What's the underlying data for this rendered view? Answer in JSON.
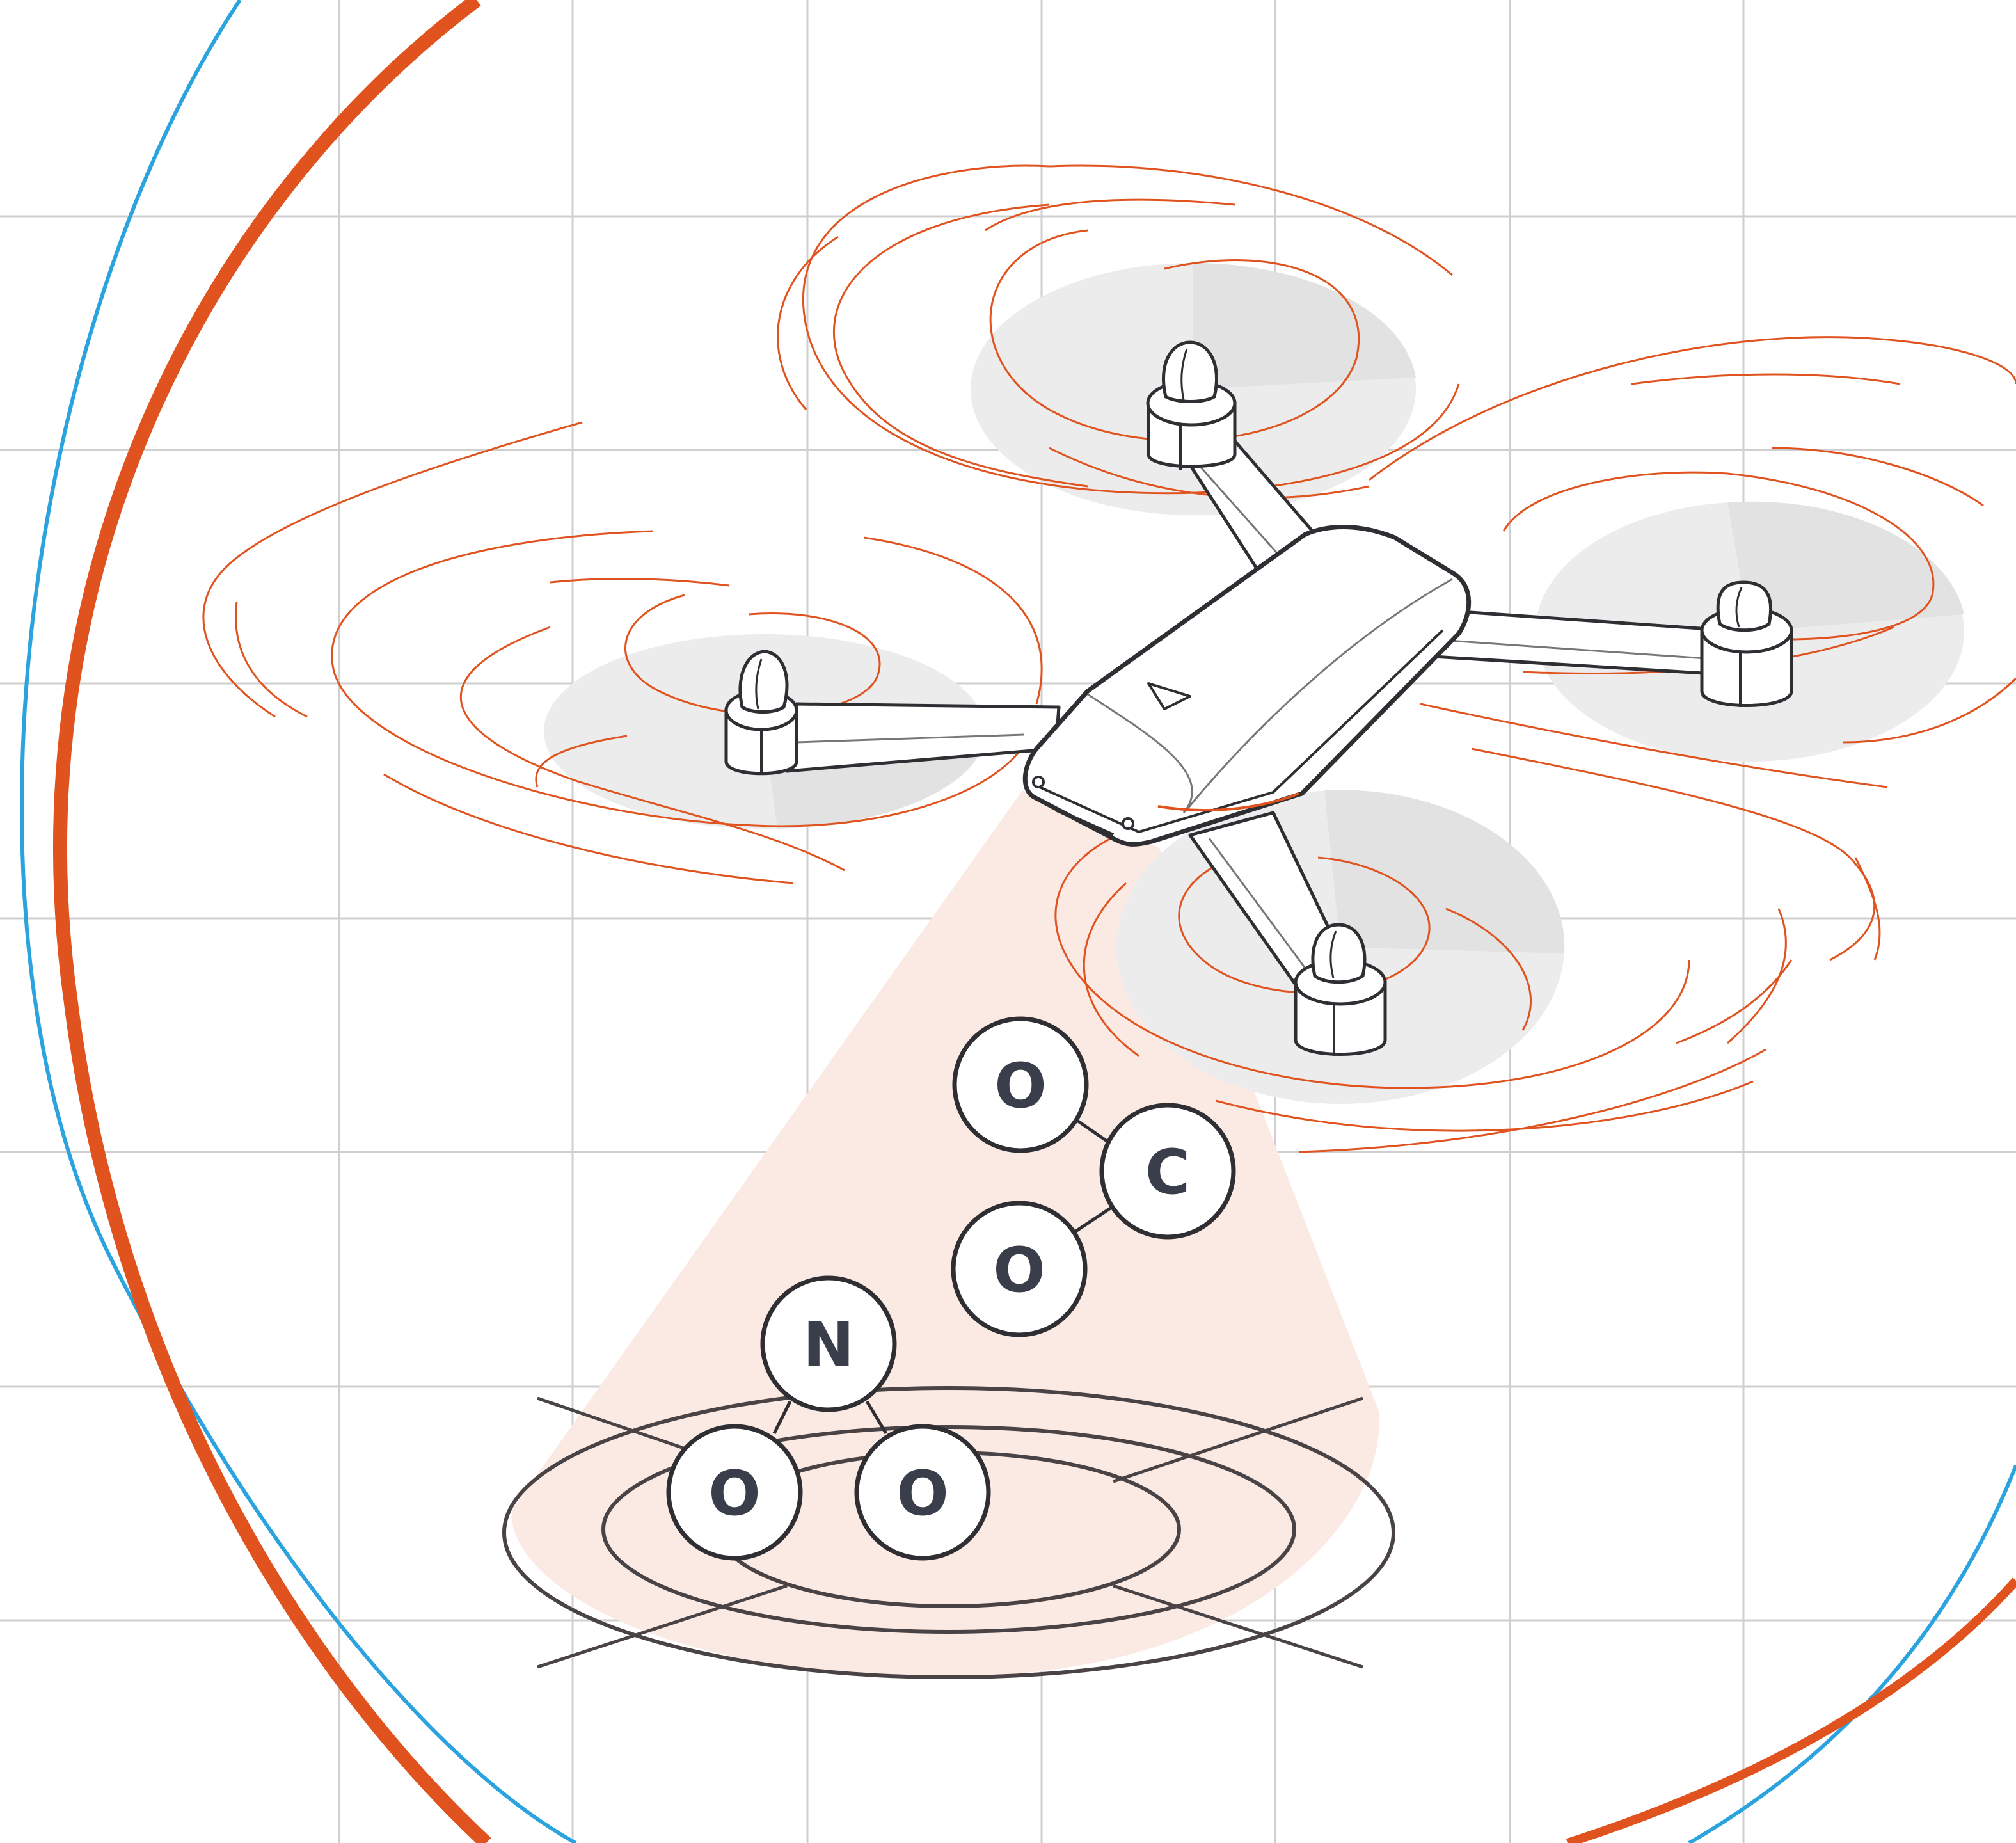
{
  "colors": {
    "background": "#ffffff",
    "grid": "#cfcfcf",
    "orange": "#e0531f",
    "blue": "#2ba3df",
    "line": "#2e2e33",
    "prop_disc": "#e6e6e6",
    "beam": "#fbeae3",
    "atom_text": "#3a3d4a"
  },
  "molecules": {
    "co2": {
      "top_o": "O",
      "center": "C",
      "bottom_o": "O"
    },
    "no2": {
      "center": "N",
      "left_o": "O",
      "right_o": "O"
    }
  },
  "icons": {
    "drone": "drone-icon",
    "sensor_beam": "scan-beam",
    "target": "target-rings"
  }
}
